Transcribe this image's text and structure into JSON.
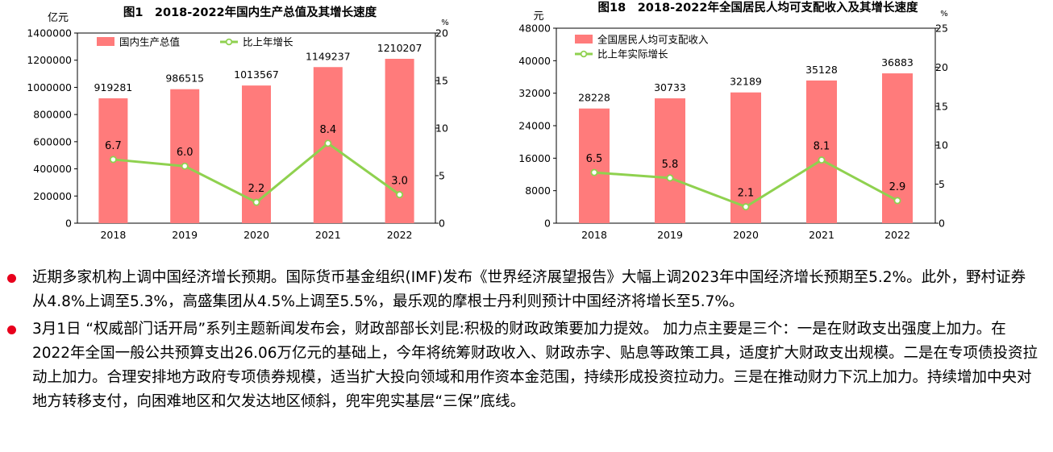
{
  "charts": [
    {
      "title": "图1　2018-2022年国内生产总值及其增长速度",
      "left_unit": "亿元",
      "right_unit": "%",
      "legend": {
        "bar": "国内生产总值",
        "line": "比上年增长"
      },
      "bar_color": "#ff7b7b",
      "line_color": "#8fd14f"
    },
    {
      "title": "图18　2018-2022年全国居民人均可支配收入及其增长速度",
      "left_unit": "元",
      "right_unit": "%",
      "legend": {
        "bar": "全国居民人均可支配收入",
        "line": "比上年实际增长"
      },
      "bar_color": "#ff7b7b",
      "line_color": "#8fd14f"
    }
  ],
  "chart_data": [
    {
      "type": "bar",
      "title": "图1　2018-2022年国内生产总值及其增长速度",
      "categories": [
        "2018",
        "2019",
        "2020",
        "2021",
        "2022"
      ],
      "series": [
        {
          "name": "国内生产总值",
          "type": "bar",
          "axis": "left",
          "values": [
            919281,
            986515,
            1013567,
            1149237,
            1210207
          ]
        },
        {
          "name": "比上年增长",
          "type": "line",
          "axis": "right",
          "values": [
            6.7,
            6.0,
            2.2,
            8.4,
            3.0
          ]
        }
      ],
      "y_left": {
        "label": "亿元",
        "lim": [
          0,
          1400000
        ],
        "ticks": [
          0,
          200000,
          400000,
          600000,
          800000,
          1000000,
          1200000,
          1400000
        ]
      },
      "y_right": {
        "label": "%",
        "lim": [
          0,
          20
        ],
        "ticks": [
          0,
          5,
          10,
          15,
          20
        ]
      },
      "legend_position": "top-left",
      "grid": false
    },
    {
      "type": "bar",
      "title": "图18　2018-2022年全国居民人均可支配收入及其增长速度",
      "categories": [
        "2018",
        "2019",
        "2020",
        "2021",
        "2022"
      ],
      "series": [
        {
          "name": "全国居民人均可支配收入",
          "type": "bar",
          "axis": "left",
          "values": [
            28228,
            30733,
            32189,
            35128,
            36883
          ]
        },
        {
          "name": "比上年实际增长",
          "type": "line",
          "axis": "right",
          "values": [
            6.5,
            5.8,
            2.1,
            8.1,
            2.9
          ]
        }
      ],
      "y_left": {
        "label": "元",
        "lim": [
          0,
          48000
        ],
        "ticks": [
          0,
          8000,
          16000,
          24000,
          32000,
          40000,
          48000
        ]
      },
      "y_right": {
        "label": "%",
        "lim": [
          0,
          25
        ],
        "ticks": [
          0,
          5,
          10,
          15,
          20,
          25
        ]
      },
      "legend_position": "top-left",
      "grid": false
    }
  ],
  "bullets": [
    {
      "text": "近期多家机构上调中国经济增长预期。国际货币基金组织(IMF)发布《世界经济展望报告》大幅上调2023年中国经济增长预期至5.2%。此外，野村证券从4.8%上调至5.3%，高盛集团从4.5%上调至5.5%，最乐观的摩根士丹利则预计中国经济将增长至5.7%。"
    },
    {
      "text": "3月1日 “权威部门话开局”系列主题新闻发布会，财政部部长刘昆:积极的财政政策要加力提效。 加力点主要是三个：一是在财政支出强度上加力。在2022年全国一般公共预算支出26.06万亿元的基础上，今年将统筹财政收入、财政赤字、贴息等政策工具，适度扩大财政支出规模。二是在专项债投资拉动上加力。合理安排地方政府专项债券规模，适当扩大投向领域和用作资本金范围，持续形成投资拉动力。三是在推动财力下沉上加力。持续增加中央对地方转移支付，向困难地区和欠发达地区倾斜，兜牢兜实基层“三保”底线。"
    }
  ],
  "bullet_color": "#e8001c"
}
